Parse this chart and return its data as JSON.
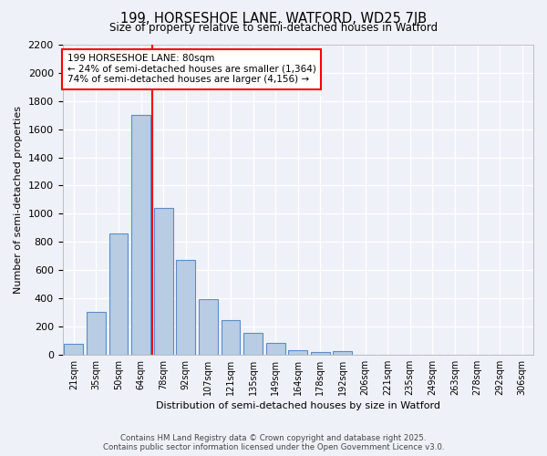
{
  "title": "199, HORSESHOE LANE, WATFORD, WD25 7JB",
  "subtitle": "Size of property relative to semi-detached houses in Watford",
  "xlabel": "Distribution of semi-detached houses by size in Watford",
  "ylabel": "Number of semi-detached properties",
  "categories": [
    "21sqm",
    "35sqm",
    "50sqm",
    "64sqm",
    "78sqm",
    "92sqm",
    "107sqm",
    "121sqm",
    "135sqm",
    "149sqm",
    "164sqm",
    "178sqm",
    "192sqm",
    "206sqm",
    "221sqm",
    "235sqm",
    "249sqm",
    "263sqm",
    "278sqm",
    "292sqm",
    "306sqm"
  ],
  "values": [
    75,
    305,
    860,
    1700,
    1040,
    670,
    395,
    245,
    155,
    80,
    30,
    20,
    25,
    0,
    0,
    0,
    0,
    0,
    0,
    0,
    0
  ],
  "bar_color": "#b8cce4",
  "bar_edge_color": "#5b8dc8",
  "marker_bin_index": 3,
  "marker_color": "red",
  "ylim": [
    0,
    2200
  ],
  "yticks": [
    0,
    200,
    400,
    600,
    800,
    1000,
    1200,
    1400,
    1600,
    1800,
    2000,
    2200
  ],
  "annotation_title": "199 HORSESHOE LANE: 80sqm",
  "annotation_line1": "← 24% of semi-detached houses are smaller (1,364)",
  "annotation_line2": "74% of semi-detached houses are larger (4,156) →",
  "footer1": "Contains HM Land Registry data © Crown copyright and database right 2025.",
  "footer2": "Contains public sector information licensed under the Open Government Licence v3.0.",
  "bg_color": "#eef2f8",
  "grid_color": "#ffffff"
}
